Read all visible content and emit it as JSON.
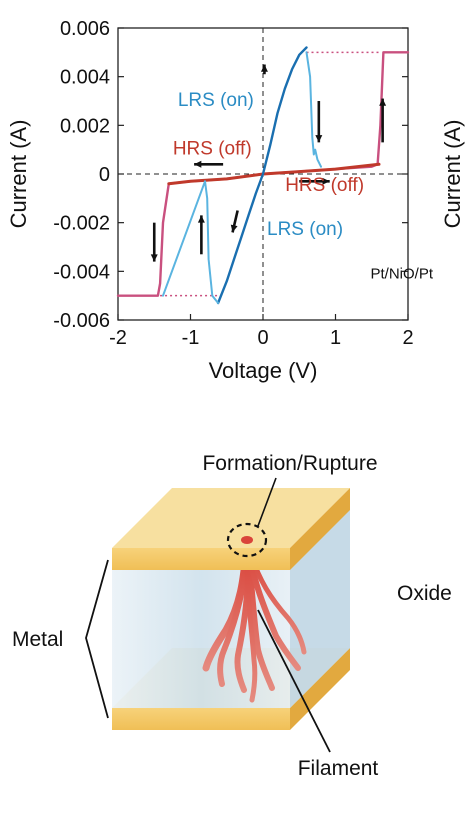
{
  "chart_data": {
    "type": "line",
    "title": "",
    "xlabel": "Voltage (V)",
    "ylabel": "Current (A)",
    "right_axis_label": "Current (A)",
    "xlim": [
      -2,
      2
    ],
    "ylim": [
      -0.006,
      0.006
    ],
    "x_ticks": [
      -2,
      -1,
      0,
      1,
      2
    ],
    "x_tick_labels": [
      "-2",
      "-1",
      "0",
      "1",
      "2"
    ],
    "y_ticks": [
      0.006,
      0.004,
      0.002,
      0,
      -0.002,
      -0.004,
      -0.006
    ],
    "y_tick_labels": [
      "0.006",
      "0.004",
      "0.002",
      "0",
      "-0.002",
      "-0.004",
      "-0.006"
    ],
    "grid": false,
    "legend": "none",
    "series": [
      {
        "color": "#c9507f",
        "x": [
          -2.0,
          -1.45,
          -1.42,
          -1.38,
          -1.3,
          -1.0,
          -0.5,
          0.0,
          0.5,
          1.0,
          1.5,
          1.58,
          1.62,
          1.66,
          2.0
        ],
        "y": [
          -0.005,
          -0.005,
          -0.0045,
          -0.002,
          -0.0004,
          -0.0003,
          -0.0002,
          0.0,
          0.0001,
          0.0002,
          0.0003,
          0.0004,
          0.002,
          0.005,
          0.005
        ]
      },
      {
        "color": "#c0392b",
        "x": [
          -1.3,
          -1.0,
          -0.5,
          0.0,
          0.5,
          1.0,
          1.6
        ],
        "y": [
          -0.0004,
          -0.0003,
          -0.0002,
          0.0,
          0.0001,
          0.0002,
          0.0004
        ]
      },
      {
        "color": "#1a6fb0",
        "x": [
          -0.62,
          -0.5,
          -0.4,
          -0.3,
          -0.2,
          -0.1,
          0.0,
          0.1,
          0.2,
          0.3,
          0.4,
          0.5,
          0.6
        ],
        "y": [
          -0.0053,
          -0.0044,
          -0.0035,
          -0.0026,
          -0.0017,
          -0.0008,
          0.0,
          0.0012,
          0.0025,
          0.0035,
          0.0043,
          0.0049,
          0.0052
        ]
      },
      {
        "color": "#5ab4e0",
        "x": [
          0.6,
          0.65,
          0.68,
          0.7,
          0.72,
          0.75,
          0.8
        ],
        "y": [
          0.005,
          0.004,
          0.0015,
          0.0008,
          0.001,
          0.0006,
          0.0003
        ]
      },
      {
        "color": "#5ab4e0",
        "x": [
          -0.62,
          -0.7,
          -0.75,
          -0.77,
          -0.8,
          -1.38
        ],
        "y": [
          -0.0053,
          -0.005,
          -0.0035,
          -0.001,
          -0.0003,
          -0.005
        ]
      }
    ],
    "annotations": [
      {
        "text": "LRS (on)",
        "color": "#2b8cc4",
        "at": [
          -0.65,
          0.0028
        ]
      },
      {
        "text": "HRS (off)",
        "color": "#c0392b",
        "at": [
          -0.7,
          0.0008
        ]
      },
      {
        "text": "HRS (off)",
        "color": "#c0392b",
        "at": [
          0.85,
          -0.0007
        ]
      },
      {
        "text": "LRS (on)",
        "color": "#2b8cc4",
        "at": [
          0.0,
          -0.0025
        ]
      },
      {
        "text": "Pt/NiO/Pt",
        "color": "#111111",
        "at": [
          1.4,
          -0.0043
        ]
      }
    ]
  },
  "diagram": {
    "labels": {
      "formation": "Formation/Rupture",
      "oxide": "Oxide",
      "metal": "Metal",
      "filament": "Filament"
    },
    "colors": {
      "metal": "#f0c060",
      "oxide": "#d6e6f0",
      "filament": "#c0392b"
    }
  }
}
